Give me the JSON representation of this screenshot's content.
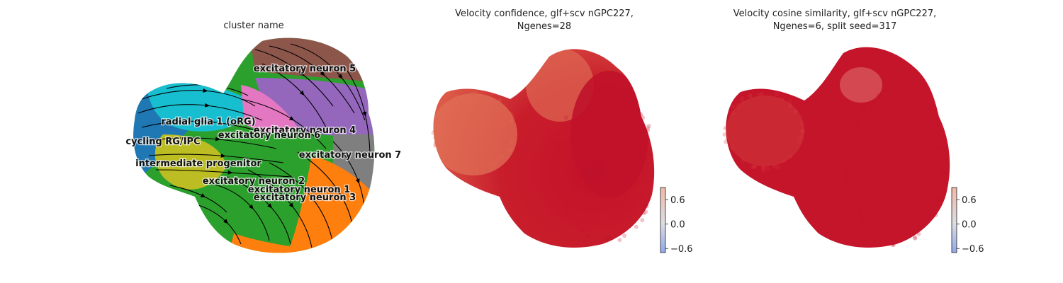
{
  "chart_data": [
    {
      "type": "scatter",
      "title": "cluster name",
      "xlabel": "",
      "ylabel": "",
      "overlay": "velocity stream lines",
      "grid": false,
      "legend": "on data",
      "clusters": [
        {
          "name": "radial glia 1 (oRG)",
          "color": "#17becf"
        },
        {
          "name": "cycling RG/IPC",
          "color": "#1f77b4"
        },
        {
          "name": "intermediate progenitor",
          "color": "#bcbd22"
        },
        {
          "name": "excitatory neuron 1",
          "color": "#ff7f0e"
        },
        {
          "name": "excitatory neuron 2",
          "color": "#2ca02c"
        },
        {
          "name": "excitatory neuron 3",
          "color": "#d62728"
        },
        {
          "name": "excitatory neuron 4",
          "color": "#9467bd"
        },
        {
          "name": "excitatory neuron 5",
          "color": "#8c564b"
        },
        {
          "name": "excitatory neuron 6",
          "color": "#e377c2"
        },
        {
          "name": "excitatory neuron 7",
          "color": "#7f7f7f"
        }
      ]
    },
    {
      "type": "scatter",
      "title": "Velocity confidence, glf+scv nGPC227,",
      "subtitle": "Ngenes=28",
      "xlabel": "",
      "ylabel": "",
      "grid": false,
      "colorbar": {
        "ticks": [
          "0.6",
          "0.0",
          "−0.6"
        ],
        "range": [
          -0.7,
          0.9
        ],
        "colormap": "coolwarm"
      },
      "point_color": "#c0152a",
      "point_color_low": "#e06650"
    },
    {
      "type": "scatter",
      "title": "Velocity cosine similarity, glf+scv nGPC227,",
      "subtitle": "Ngenes=6, split seed=317",
      "xlabel": "",
      "ylabel": "",
      "grid": false,
      "colorbar": {
        "ticks": [
          "0.6",
          "0.0",
          "−0.6"
        ],
        "range": [
          -0.7,
          0.9
        ],
        "colormap": "coolwarm"
      },
      "point_color": "#c0152a",
      "point_color_low": "#d8373a"
    }
  ]
}
